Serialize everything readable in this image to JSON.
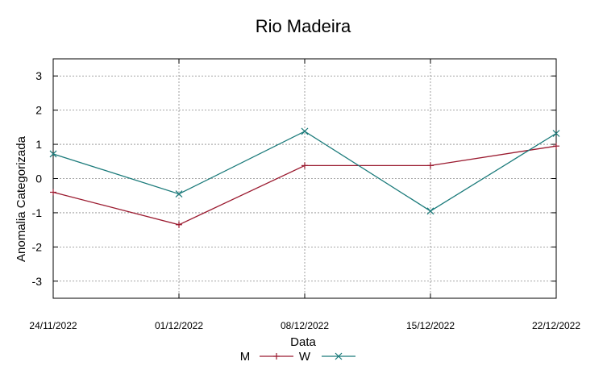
{
  "chart_data": {
    "type": "line",
    "title": "Rio Madeira",
    "xlabel": "Data",
    "ylabel": "Anomalia Categorizada",
    "categories": [
      "24/11/2022",
      "01/12/2022",
      "08/12/2022",
      "15/12/2022",
      "22/12/2022"
    ],
    "yticks": [
      "3",
      "2",
      "1",
      "0",
      "-1",
      "-2",
      "-3"
    ],
    "ylim": [
      -3.5,
      3.5
    ],
    "grid": true,
    "legend_position": "bottom-center",
    "series": [
      {
        "name": "M",
        "values": [
          -0.4,
          -1.35,
          0.38,
          0.38,
          0.95
        ],
        "color": "#9b1b30",
        "marker": "plus"
      },
      {
        "name": "W",
        "values": [
          0.72,
          -0.45,
          1.38,
          -0.95,
          1.32
        ],
        "color": "#1a7a7a",
        "marker": "cross"
      }
    ]
  }
}
